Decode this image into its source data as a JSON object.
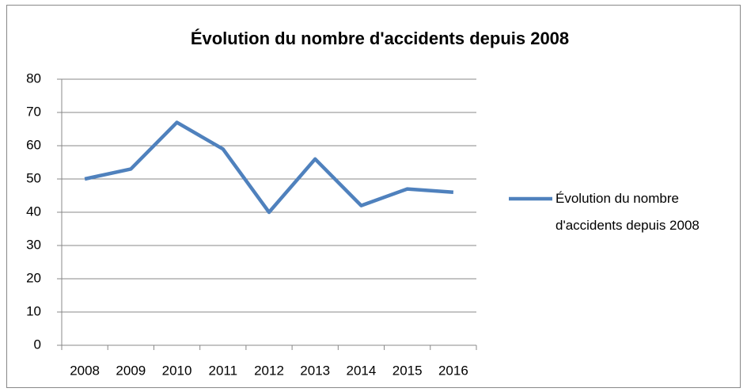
{
  "chart_data": {
    "type": "line",
    "title": "Évolution du nombre d'accidents depuis 2008",
    "categories": [
      "2008",
      "2009",
      "2010",
      "2011",
      "2012",
      "2013",
      "2014",
      "2015",
      "2016"
    ],
    "series": [
      {
        "name": "Évolution du nombre d'accidents depuis 2008",
        "color": "#4f81bd",
        "values": [
          50,
          53,
          67,
          59,
          40,
          56,
          42,
          47,
          46
        ]
      }
    ],
    "ylim": [
      0,
      80
    ],
    "yticks": [
      0,
      10,
      20,
      30,
      40,
      50,
      60,
      70,
      80
    ],
    "grid": true,
    "legend": "right"
  }
}
